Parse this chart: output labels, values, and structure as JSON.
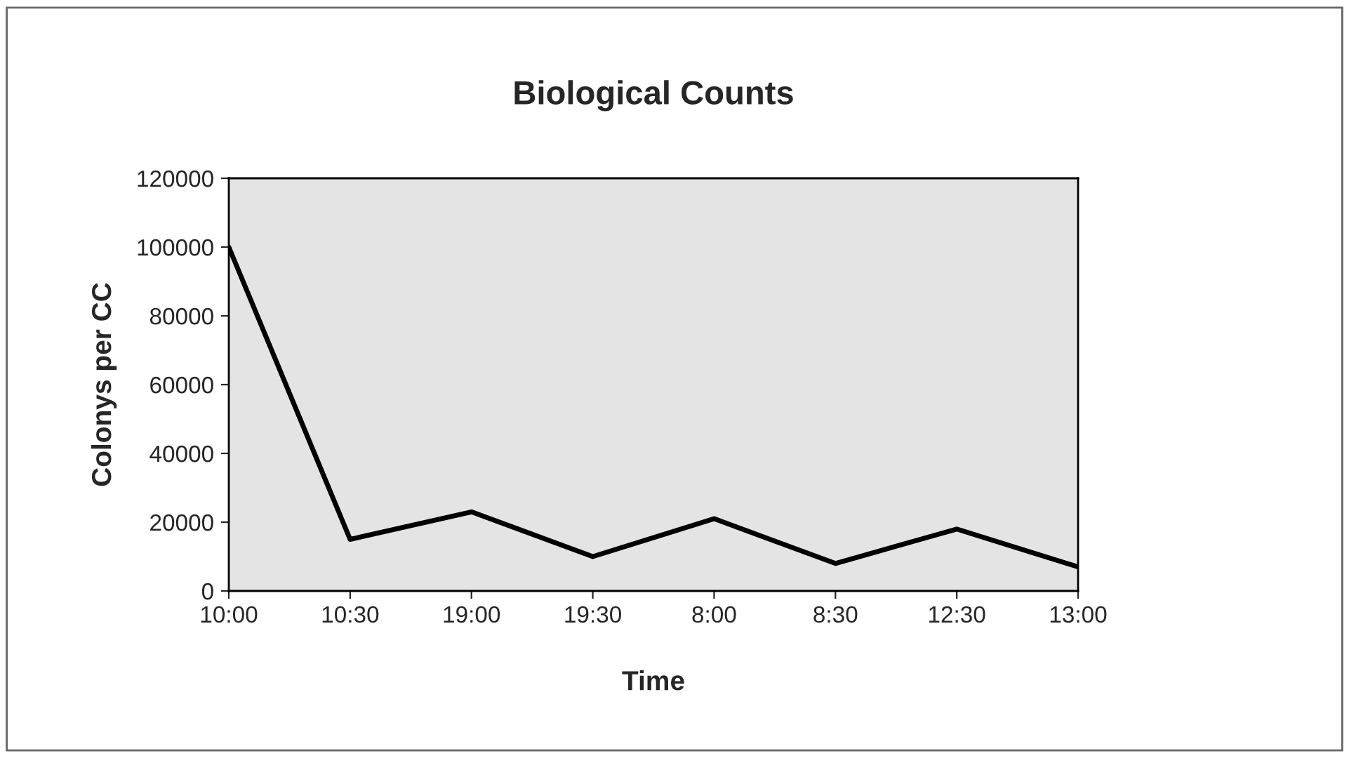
{
  "chart_data": {
    "type": "line",
    "title": "Biological Counts",
    "xlabel": "Time",
    "ylabel": "Colonys per CC",
    "categories": [
      "10:00",
      "10:30",
      "19:00",
      "19:30",
      "8:00",
      "8:30",
      "12:30",
      "13:00"
    ],
    "series": [
      {
        "color": "#000000",
        "values": [
          100000,
          15000,
          23000,
          10000,
          21000,
          8000,
          18000,
          7000
        ]
      }
    ],
    "ylim": [
      0,
      120000
    ],
    "yticks": [
      0,
      20000,
      40000,
      60000,
      80000,
      100000,
      120000
    ],
    "grid": false,
    "legend": false,
    "marker": "none",
    "line_style": "solid"
  }
}
